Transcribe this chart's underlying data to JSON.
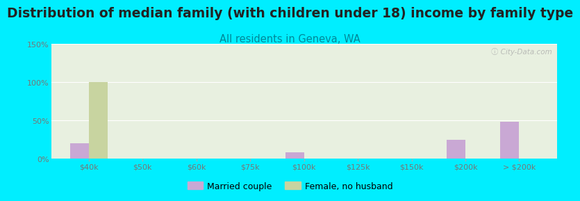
{
  "title": "Distribution of median family (with children under 18) income by family type",
  "subtitle": "All residents in Geneva, WA",
  "watermark": "ⓘ City-Data.com",
  "categories": [
    "$40k",
    "$50k",
    "$60k",
    "$75k",
    "$100k",
    "$125k",
    "$150k",
    "$200k",
    "> $200k"
  ],
  "married_couple": [
    20,
    0,
    0,
    0,
    8,
    0,
    0,
    25,
    48
  ],
  "female_no_husband": [
    100,
    0,
    0,
    0,
    0,
    0,
    0,
    0,
    0
  ],
  "married_color": "#c9a8d4",
  "female_color": "#c8d4a0",
  "background_outer": "#00eeff",
  "background_plot": "#e8f0e0",
  "ylim": [
    0,
    150
  ],
  "yticks": [
    0,
    50,
    100,
    150
  ],
  "ytick_labels": [
    "0%",
    "50%",
    "100%",
    "150%"
  ],
  "title_fontsize": 13.5,
  "subtitle_fontsize": 10.5,
  "bar_width": 0.35,
  "legend_labels": [
    "Married couple",
    "Female, no husband"
  ],
  "tick_color": "#777777",
  "title_color": "#222222",
  "subtitle_color": "#008899"
}
